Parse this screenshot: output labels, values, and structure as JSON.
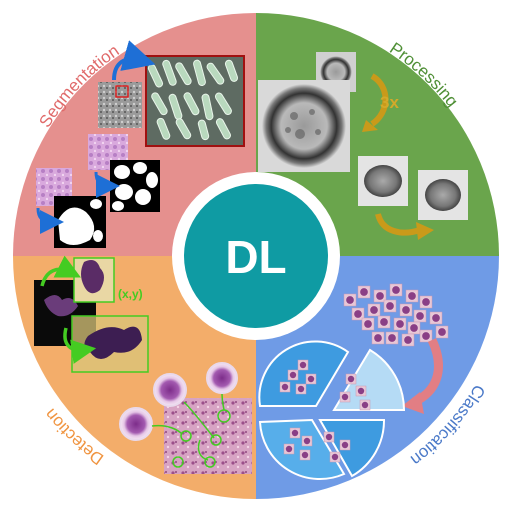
{
  "center": {
    "label": "DL"
  },
  "quadrants": {
    "segmentation": {
      "label": "Segmentation"
    },
    "processing": {
      "label": "Processing",
      "scale_label": "3x"
    },
    "classification": {
      "label": "Classification"
    },
    "detection": {
      "label": "Detection",
      "coord_label": "(x,y)"
    }
  },
  "colors": {
    "segmentation": "#e5908e",
    "processing": "#6aa54c",
    "classification": "#6f9be6",
    "detection": "#f3ad6a",
    "center": "#0f9ba3",
    "detection_green": "#44cc22",
    "arrow_blue": "#1e6fd6",
    "arrow_gold": "#c99a1a",
    "arrow_pink": "#e27e84"
  },
  "icons": [
    "blue-curved-arrow-icon",
    "gold-curved-arrow-icon",
    "pink-curved-arrow-icon",
    "green-curved-arrow-icon"
  ]
}
